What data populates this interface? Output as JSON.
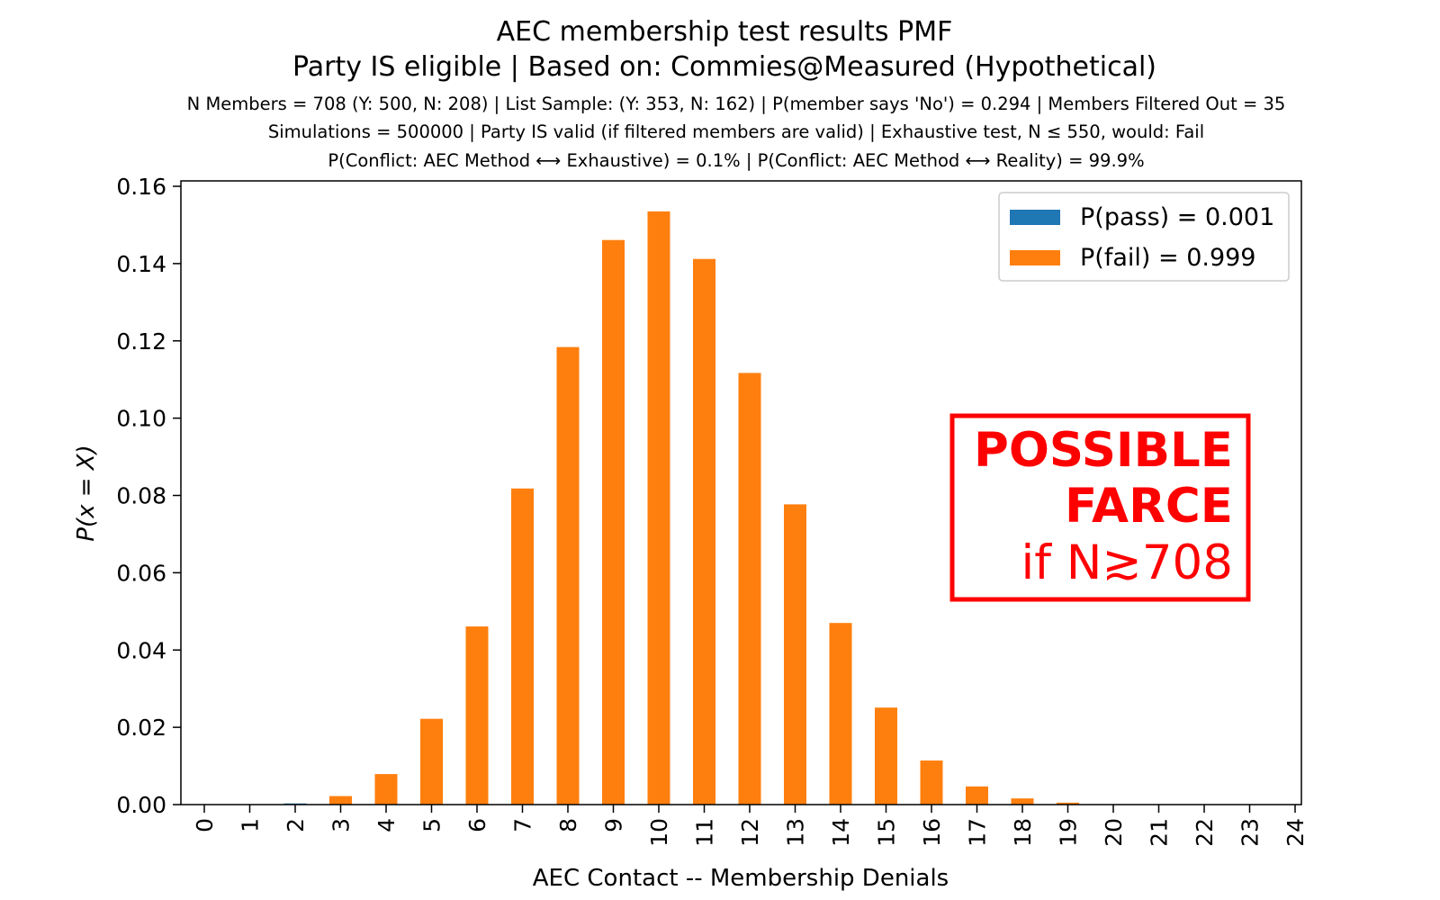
{
  "chart_data": {
    "type": "bar",
    "title": "AEC membership test results PMF",
    "subtitle": "Party IS eligible | Based on: Commies@Measured (Hypothetical)",
    "info_lines": [
      "N Members = 708 (Y: 500, N: 208) | List Sample: (Y: 353, N: 162) | P(member says 'No') = 0.294 | Members Filtered Out = 35",
      "Simulations = 500000 | Party IS valid (if filtered members are valid) | Exhaustive test, N ≤ 550, would: Fail",
      "P(Conflict: AEC Method ⟷ Exhaustive) = 0.1% | P(Conflict: AEC Method ⟷ Reality) = 99.9%"
    ],
    "xlabel": "AEC Contact -- Membership Denials",
    "ylabel": "P(x = X)",
    "ylim": [
      0,
      0.16
    ],
    "yticks": [
      "0.00",
      "0.02",
      "0.04",
      "0.06",
      "0.08",
      "0.10",
      "0.12",
      "0.14",
      "0.16"
    ],
    "categories": [
      "0",
      "1",
      "2",
      "3",
      "4",
      "5",
      "6",
      "7",
      "8",
      "9",
      "10",
      "11",
      "12",
      "13",
      "14",
      "15",
      "16",
      "17",
      "18",
      "19",
      "20",
      "21",
      "22",
      "23",
      "24"
    ],
    "series": [
      {
        "name": "P(pass) = 0.001",
        "color": "#1f77b4",
        "values": [
          0,
          0,
          0.0003,
          0,
          0,
          0,
          0,
          0,
          0,
          0,
          0,
          0,
          0,
          0,
          0,
          0,
          0,
          0,
          0,
          0,
          0,
          0,
          0,
          0,
          0
        ]
      },
      {
        "name": "P(fail) = 0.999",
        "color": "#ff7f0e",
        "values": [
          0,
          0,
          0,
          0.0022,
          0.0079,
          0.0222,
          0.0461,
          0.0818,
          0.1184,
          0.1461,
          0.1535,
          0.1412,
          0.1117,
          0.0777,
          0.047,
          0.0251,
          0.0114,
          0.0047,
          0.0016,
          0.0005,
          0.0001,
          0,
          0,
          0,
          0
        ]
      }
    ],
    "legend_placement": "top-right",
    "grid": false,
    "annotation": {
      "lines": [
        "POSSIBLE",
        "FARCE",
        "if N≳708"
      ],
      "color": "#ff0000"
    }
  }
}
